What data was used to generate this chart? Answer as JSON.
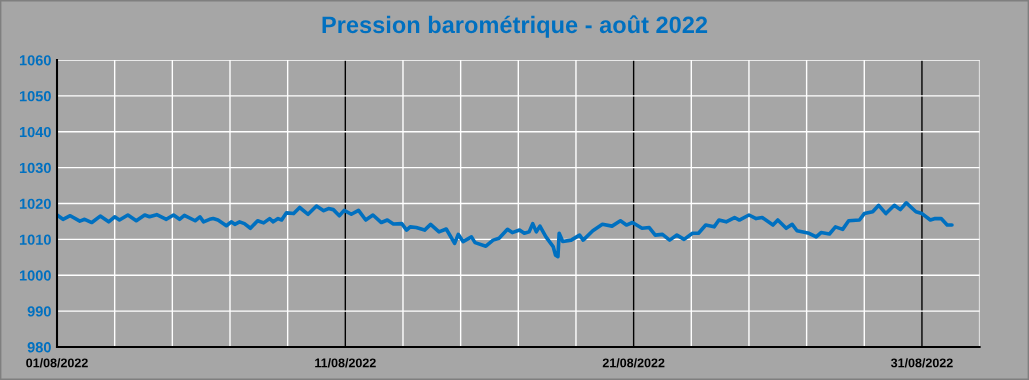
{
  "chart_data": {
    "type": "line",
    "title": "Pression barométrique - août 2022",
    "series": [
      {
        "color": "#0070c0",
        "x": [
          "2022-08-01T00:00",
          "2022-08-01T05:00",
          "2022-08-01T11:00",
          "2022-08-01T19:00",
          "2022-08-01T23:00",
          "2022-08-02T05:00",
          "2022-08-02T12:00",
          "2022-08-02T19:00",
          "2022-08-03T00:00",
          "2022-08-03T04:00",
          "2022-08-03T11:00",
          "2022-08-03T18:00",
          "2022-08-04T01:00",
          "2022-08-04T05:00",
          "2022-08-04T11:00",
          "2022-08-04T19:00",
          "2022-08-05T01:00",
          "2022-08-05T06:00",
          "2022-08-05T10:00",
          "2022-08-05T19:00",
          "2022-08-05T23:00",
          "2022-08-06T02:00",
          "2022-08-06T07:00",
          "2022-08-06T10:00",
          "2022-08-06T14:00",
          "2022-08-06T21:00",
          "2022-08-07T01:00",
          "2022-08-07T04:00",
          "2022-08-07T08:00",
          "2022-08-07T12:00",
          "2022-08-07T17:00",
          "2022-08-07T23:00",
          "2022-08-08T04:00",
          "2022-08-08T09:00",
          "2022-08-08T12:00",
          "2022-08-08T16:00",
          "2022-08-08T19:00",
          "2022-08-08T23:00",
          "2022-08-09T05:00",
          "2022-08-09T10:00",
          "2022-08-09T17:00",
          "2022-08-10T00:00",
          "2022-08-10T06:00",
          "2022-08-10T10:00",
          "2022-08-10T14:00",
          "2022-08-10T19:00",
          "2022-08-10T23:00",
          "2022-08-11T05:00",
          "2022-08-11T11:00",
          "2022-08-11T17:00",
          "2022-08-11T23:00",
          "2022-08-12T06:00",
          "2022-08-12T11:00",
          "2022-08-12T16:00",
          "2022-08-12T23:00",
          "2022-08-13T03:00",
          "2022-08-13T06:00",
          "2022-08-13T11:00",
          "2022-08-13T18:00",
          "2022-08-13T23:00",
          "2022-08-14T06:00",
          "2022-08-14T12:00",
          "2022-08-14T19:00",
          "2022-08-14T22:00",
          "2022-08-15T02:00",
          "2022-08-15T09:00",
          "2022-08-15T12:00",
          "2022-08-15T21:00",
          "2022-08-16T03:00",
          "2022-08-16T08:00",
          "2022-08-16T15:00",
          "2022-08-16T19:00",
          "2022-08-17T01:00",
          "2022-08-17T05:00",
          "2022-08-17T09:00",
          "2022-08-17T12:00",
          "2022-08-17T15:00",
          "2022-08-17T18:00",
          "2022-08-17T23:00",
          "2022-08-18T05:00",
          "2022-08-18T07:00",
          "2022-08-18T09:00",
          "2022-08-18T10:00",
          "2022-08-18T13:00",
          "2022-08-18T20:00",
          "2022-08-19T03:00",
          "2022-08-19T06:00",
          "2022-08-19T14:00",
          "2022-08-19T22:00",
          "2022-08-20T06:00",
          "2022-08-20T13:00",
          "2022-08-20T18:00",
          "2022-08-20T23:00",
          "2022-08-21T07:00",
          "2022-08-21T13:00",
          "2022-08-21T18:00",
          "2022-08-22T00:00",
          "2022-08-22T06:00",
          "2022-08-22T12:00",
          "2022-08-22T18:00",
          "2022-08-23T01:00",
          "2022-08-23T06:00",
          "2022-08-23T12:00",
          "2022-08-23T19:00",
          "2022-08-23T23:00",
          "2022-08-24T05:00",
          "2022-08-24T12:00",
          "2022-08-24T16:00",
          "2022-08-25T00:00",
          "2022-08-25T06:00",
          "2022-08-25T11:00",
          "2022-08-25T20:00",
          "2022-08-26T00:00",
          "2022-08-26T07:00",
          "2022-08-26T12:00",
          "2022-08-26T16:00",
          "2022-08-27T02:00",
          "2022-08-27T08:00",
          "2022-08-27T12:00",
          "2022-08-27T19:00",
          "2022-08-28T00:00",
          "2022-08-28T06:00",
          "2022-08-28T11:00",
          "2022-08-28T20:00",
          "2022-08-29T00:00",
          "2022-08-29T07:00",
          "2022-08-29T12:00",
          "2022-08-29T18:00",
          "2022-08-30T01:00",
          "2022-08-30T06:00",
          "2022-08-30T11:00",
          "2022-08-30T19:00",
          "2022-08-31T00:00",
          "2022-08-31T07:00",
          "2022-08-31T11:00",
          "2022-08-31T16:00",
          "2022-08-31T21:00",
          "2022-09-01T01:00"
        ],
        "values": [
          1016.8,
          1015.6,
          1016.6,
          1015.1,
          1015.6,
          1014.7,
          1016.5,
          1014.9,
          1016.3,
          1015.4,
          1016.8,
          1015.2,
          1016.8,
          1016.3,
          1016.9,
          1015.6,
          1016.8,
          1015.6,
          1016.7,
          1015.2,
          1016.3,
          1014.9,
          1015.6,
          1015.8,
          1015.4,
          1013.8,
          1014.9,
          1014.2,
          1014.9,
          1014.4,
          1013.1,
          1015.2,
          1014.6,
          1015.8,
          1014.9,
          1015.8,
          1015.4,
          1017.4,
          1017.2,
          1018.9,
          1017.0,
          1019.3,
          1018.0,
          1018.6,
          1018.3,
          1016.6,
          1018.1,
          1017.0,
          1018.1,
          1015.4,
          1016.8,
          1014.7,
          1015.4,
          1014.3,
          1014.4,
          1012.6,
          1013.5,
          1013.3,
          1012.6,
          1014.2,
          1012.1,
          1012.9,
          1008.9,
          1011.4,
          1009.4,
          1010.7,
          1009.1,
          1008.1,
          1009.8,
          1010.3,
          1012.8,
          1011.9,
          1012.6,
          1011.7,
          1012.1,
          1014.4,
          1012.1,
          1013.7,
          1010.7,
          1008.0,
          1005.6,
          1005.2,
          1011.7,
          1009.4,
          1009.8,
          1011.2,
          1009.8,
          1012.4,
          1014.2,
          1013.7,
          1015.2,
          1014.0,
          1014.7,
          1013.1,
          1013.3,
          1011.2,
          1011.4,
          1009.8,
          1011.2,
          1010.0,
          1011.7,
          1011.7,
          1014.0,
          1013.5,
          1015.4,
          1014.9,
          1016.1,
          1015.4,
          1016.8,
          1015.8,
          1016.1,
          1014.0,
          1015.4,
          1013.1,
          1014.2,
          1012.4,
          1011.7,
          1010.7,
          1011.9,
          1011.5,
          1013.5,
          1012.8,
          1015.2,
          1015.4,
          1017.2,
          1017.7,
          1019.5,
          1017.2,
          1019.5,
          1018.3,
          1020.2,
          1017.7,
          1017.2,
          1015.4,
          1015.8,
          1015.8,
          1014.0,
          1014.0
        ]
      }
    ],
    "xlim": [
      "2022-08-01",
      "2022-09-02"
    ],
    "xticks": [
      {
        "value": "2022-08-01",
        "label": "01/08/2022"
      },
      {
        "value": "2022-08-03",
        "label": null
      },
      {
        "value": "2022-08-05",
        "label": null
      },
      {
        "value": "2022-08-07",
        "label": null
      },
      {
        "value": "2022-08-09",
        "label": null
      },
      {
        "value": "2022-08-11",
        "label": "11/08/2022"
      },
      {
        "value": "2022-08-13",
        "label": null
      },
      {
        "value": "2022-08-15",
        "label": null
      },
      {
        "value": "2022-08-17",
        "label": null
      },
      {
        "value": "2022-08-19",
        "label": null
      },
      {
        "value": "2022-08-21",
        "label": "21/08/2022"
      },
      {
        "value": "2022-08-23",
        "label": null
      },
      {
        "value": "2022-08-25",
        "label": null
      },
      {
        "value": "2022-08-27",
        "label": null
      },
      {
        "value": "2022-08-29",
        "label": null
      },
      {
        "value": "2022-08-31",
        "label": "31/08/2022"
      },
      {
        "value": "2022-09-02",
        "label": null
      }
    ],
    "ylim": [
      980,
      1060
    ],
    "yticks": [
      980,
      990,
      1000,
      1010,
      1020,
      1030,
      1040,
      1050,
      1060
    ],
    "grid": true,
    "legend": false,
    "marker": "none",
    "line_style": "solid"
  }
}
